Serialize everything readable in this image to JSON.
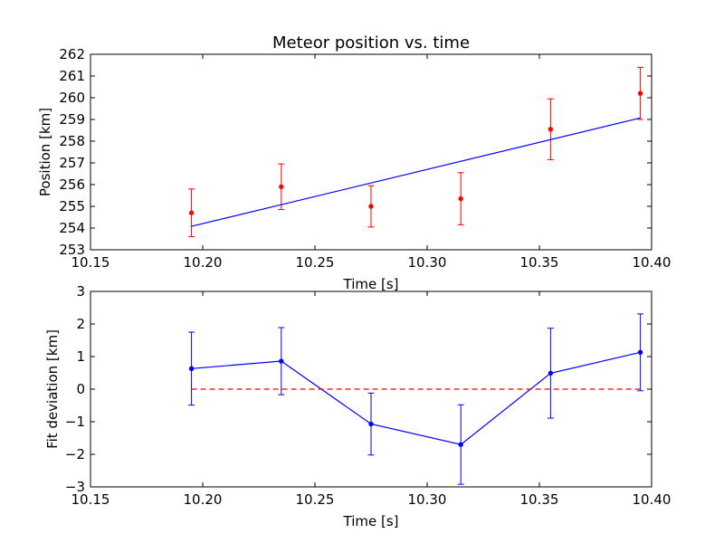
{
  "chart_data": [
    {
      "type": "scatter",
      "title": "Meteor position vs. time",
      "xlabel": "Time [s]",
      "ylabel": "Position [km]",
      "xlim": [
        10.15,
        10.4
      ],
      "ylim": [
        253,
        262
      ],
      "xticks": [
        "10.15",
        "10.20",
        "10.25",
        "10.30",
        "10.35",
        "10.40"
      ],
      "yticks": [
        "253",
        "254",
        "255",
        "256",
        "257",
        "258",
        "259",
        "260",
        "261",
        "262"
      ],
      "grid": false,
      "legend": "none",
      "series": [
        {
          "kind": "points-with-errorbars",
          "color": "#ff0000",
          "x": [
            10.195,
            10.235,
            10.275,
            10.315,
            10.355,
            10.395
          ],
          "y": [
            254.7,
            255.9,
            255.0,
            255.35,
            258.55,
            260.2
          ],
          "yerr": [
            1.1,
            1.05,
            0.95,
            1.2,
            1.4,
            1.2
          ]
        },
        {
          "kind": "fit-line",
          "color": "#0000ff",
          "x": [
            10.195,
            10.395
          ],
          "y": [
            254.08,
            259.07
          ]
        }
      ]
    },
    {
      "type": "line",
      "title": "",
      "xlabel": "Time [s]",
      "ylabel": "Fit deviation [km]",
      "xlim": [
        10.15,
        10.4
      ],
      "ylim": [
        -3,
        3
      ],
      "xticks": [
        "10.15",
        "10.20",
        "10.25",
        "10.30",
        "10.35",
        "10.40"
      ],
      "yticks": [
        "−3",
        "−2",
        "−1",
        "0",
        "1",
        "2",
        "3"
      ],
      "grid": false,
      "legend": "none",
      "series": [
        {
          "kind": "line-with-errorbars",
          "color": "#0000ff",
          "x": [
            10.195,
            10.235,
            10.275,
            10.315,
            10.355,
            10.395
          ],
          "y": [
            0.63,
            0.86,
            -1.07,
            -1.7,
            0.49,
            1.13
          ],
          "yerr": [
            1.12,
            1.03,
            0.95,
            1.22,
            1.38,
            1.18
          ]
        },
        {
          "kind": "zero-line",
          "color": "#ff0000",
          "style": "dashed",
          "x": [
            10.195,
            10.395
          ],
          "y": [
            0,
            0
          ]
        }
      ]
    }
  ]
}
